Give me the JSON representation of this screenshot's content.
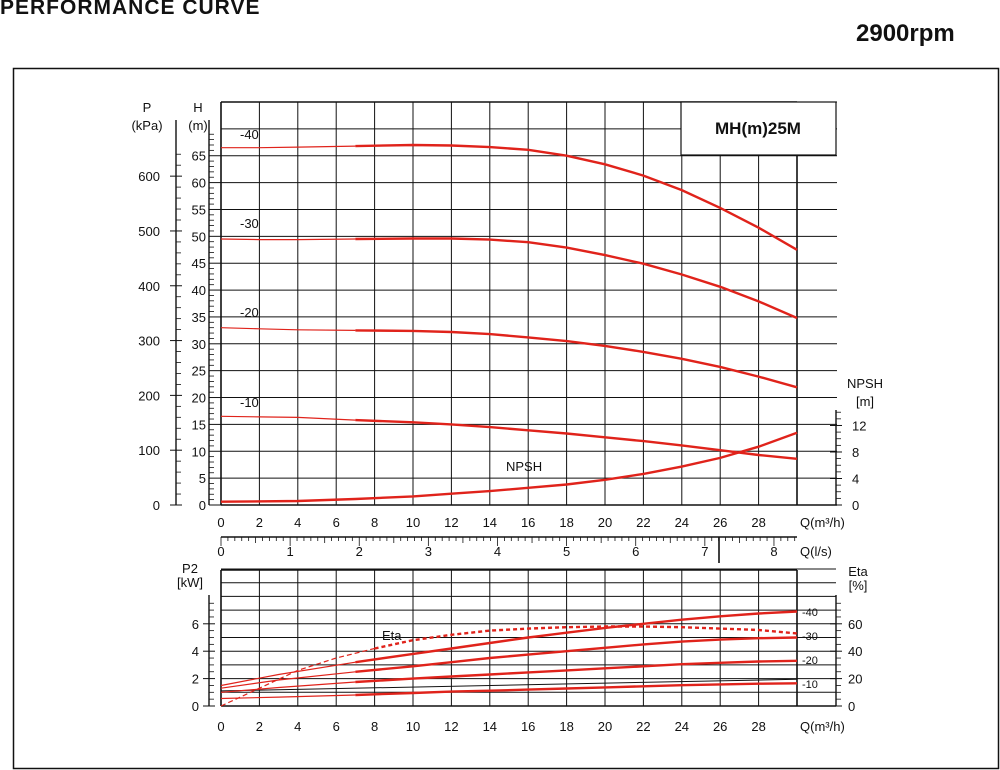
{
  "title": "PERFORMANCE CURVE",
  "speed": "2900rpm",
  "model": "MH(m)25M",
  "chart_data": [
    {
      "type": "line",
      "axes": {
        "left_outer_label_1": "P",
        "left_outer_label_2": "(kPa)",
        "left_inner_label_1": "H",
        "left_inner_label_2": "(m)",
        "right_label_1": "NPSH",
        "right_label_2": "[m]",
        "x_label": "Q(m³/h)",
        "x2_label": "Q(l/s)"
      },
      "x_ticks": [
        0,
        2,
        4,
        6,
        8,
        10,
        12,
        14,
        16,
        18,
        20,
        22,
        24,
        26,
        28
      ],
      "x2_ticks": [
        0,
        1,
        2,
        3,
        4,
        5,
        6,
        7,
        8
      ],
      "h_ticks": [
        0,
        5,
        10,
        15,
        20,
        25,
        30,
        35,
        40,
        45,
        50,
        55,
        60,
        65
      ],
      "p_ticks": [
        0,
        100,
        200,
        300,
        400,
        500,
        600
      ],
      "npsh_ticks": [
        0,
        4,
        8,
        12
      ],
      "xlim": [
        0,
        30
      ],
      "hlim": [
        0,
        75
      ],
      "series": [
        {
          "name": "-40",
          "thin_x": [
            0,
            2,
            4,
            7
          ],
          "thin_y": [
            66.5,
            66.5,
            66.6,
            66.8
          ],
          "x": [
            7,
            10,
            12,
            14,
            16,
            18,
            20,
            22,
            24,
            26,
            28,
            30
          ],
          "y": [
            66.8,
            67.0,
            66.9,
            66.6,
            66.1,
            65.0,
            63.4,
            61.3,
            58.6,
            55.3,
            51.6,
            47.5
          ]
        },
        {
          "name": "-30",
          "thin_x": [
            0,
            2,
            4,
            7
          ],
          "thin_y": [
            49.5,
            49.4,
            49.4,
            49.5
          ],
          "x": [
            7,
            10,
            12,
            14,
            16,
            18,
            20,
            22,
            24,
            26,
            28,
            30
          ],
          "y": [
            49.5,
            49.6,
            49.6,
            49.4,
            48.9,
            47.9,
            46.5,
            44.9,
            42.9,
            40.6,
            37.9,
            34.8
          ]
        },
        {
          "name": "-20",
          "thin_x": [
            0,
            2,
            4,
            7
          ],
          "thin_y": [
            33.0,
            32.8,
            32.6,
            32.5
          ],
          "x": [
            7,
            10,
            12,
            14,
            16,
            18,
            20,
            22,
            24,
            26,
            28,
            30
          ],
          "y": [
            32.5,
            32.4,
            32.2,
            31.8,
            31.2,
            30.5,
            29.6,
            28.5,
            27.2,
            25.7,
            23.9,
            21.9
          ]
        },
        {
          "name": "-10",
          "thin_x": [
            0,
            2,
            4,
            7
          ],
          "thin_y": [
            16.5,
            16.4,
            16.3,
            15.8
          ],
          "x": [
            7,
            10,
            12,
            14,
            16,
            18,
            20,
            22,
            24,
            26,
            28,
            30
          ],
          "y": [
            15.8,
            15.4,
            15.0,
            14.5,
            13.9,
            13.3,
            12.6,
            11.9,
            11.1,
            10.2,
            9.3,
            8.6
          ]
        },
        {
          "name": "NPSH",
          "x": [
            0,
            4,
            7,
            10,
            12,
            14,
            16,
            18,
            20,
            22,
            24,
            26,
            28,
            30
          ],
          "y": [
            0.5,
            0.6,
            0.9,
            1.3,
            1.7,
            2.1,
            2.6,
            3.1,
            3.8,
            4.7,
            5.8,
            7.1,
            8.8,
            10.9
          ]
        }
      ]
    },
    {
      "type": "line",
      "axes": {
        "left_label_1": "P2",
        "left_label_2": "[kW]",
        "right_label_1": "Eta",
        "right_label_2": "[%]",
        "x_label": "Q(m³/h)"
      },
      "x_ticks": [
        0,
        2,
        4,
        6,
        8,
        10,
        12,
        14,
        16,
        18,
        20,
        22,
        24,
        26,
        28
      ],
      "p2_ticks": [
        0,
        2,
        4,
        6
      ],
      "eta_ticks": [
        0,
        20,
        40,
        60
      ],
      "xlim": [
        0,
        30
      ],
      "p2lim": [
        0,
        8
      ],
      "series": [
        {
          "name": "-40",
          "thin_x": [
            0,
            3,
            7
          ],
          "thin_y": [
            1.5,
            2.3,
            3.2
          ],
          "x": [
            7,
            10,
            12,
            14,
            16,
            18,
            20,
            22,
            24,
            26,
            28,
            30
          ],
          "y": [
            3.2,
            3.8,
            4.2,
            4.6,
            5.0,
            5.35,
            5.7,
            6.0,
            6.3,
            6.55,
            6.75,
            6.9
          ]
        },
        {
          "name": "-30",
          "thin_x": [
            0,
            3,
            7
          ],
          "thin_y": [
            1.3,
            1.9,
            2.5
          ],
          "x": [
            7,
            10,
            12,
            14,
            16,
            18,
            20,
            22,
            24,
            26,
            28,
            30
          ],
          "y": [
            2.5,
            2.9,
            3.2,
            3.5,
            3.75,
            4.0,
            4.25,
            4.5,
            4.7,
            4.85,
            4.95,
            5.0
          ]
        },
        {
          "name": "-20",
          "thin_x": [
            0,
            3,
            7
          ],
          "thin_y": [
            1.0,
            1.35,
            1.75
          ],
          "x": [
            7,
            10,
            12,
            14,
            16,
            18,
            20,
            22,
            24,
            26,
            28,
            30
          ],
          "y": [
            1.75,
            2.0,
            2.15,
            2.3,
            2.45,
            2.6,
            2.75,
            2.9,
            3.05,
            3.15,
            3.25,
            3.3
          ]
        },
        {
          "name": "-10",
          "thin_x": [
            0,
            3,
            7
          ],
          "thin_y": [
            0.55,
            0.65,
            0.8
          ],
          "x": [
            7,
            10,
            12,
            14,
            16,
            18,
            20,
            22,
            24,
            26,
            28,
            30
          ],
          "y": [
            0.8,
            0.95,
            1.05,
            1.12,
            1.2,
            1.28,
            1.36,
            1.44,
            1.52,
            1.58,
            1.63,
            1.66
          ]
        },
        {
          "name": "Eta",
          "x": [
            0,
            2,
            4,
            6,
            8,
            10,
            12,
            14,
            16,
            18,
            20,
            22,
            24,
            26,
            28,
            30
          ],
          "y": [
            0,
            13,
            26,
            35,
            42,
            48,
            52,
            55,
            56.5,
            57.5,
            58,
            58,
            57.5,
            56.5,
            55.5,
            53
          ]
        }
      ],
      "series_tags": [
        "-40",
        "-30",
        "-20",
        "-10"
      ]
    }
  ]
}
